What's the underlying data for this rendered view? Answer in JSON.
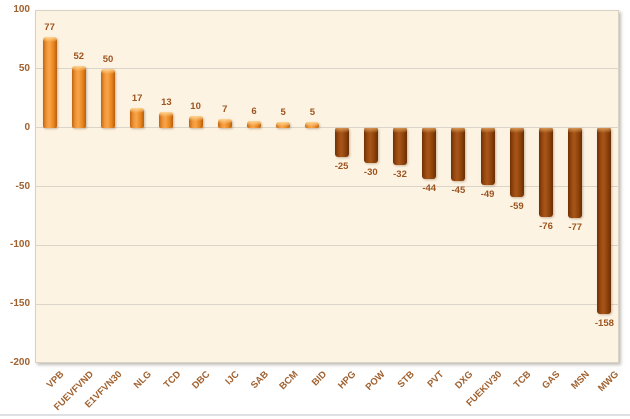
{
  "chart_data": {
    "type": "bar",
    "title": "",
    "categories": [
      "VPB",
      "FUEVFVND",
      "E1VFVN30",
      "NLG",
      "TCD",
      "DBC",
      "IJC",
      "SAB",
      "BCM",
      "BID",
      "HPG",
      "POW",
      "STB",
      "PVT",
      "DXG",
      "FUEKIV30",
      "TCB",
      "GAS",
      "MSN",
      "MWG"
    ],
    "values": [
      77,
      52,
      50,
      17,
      13,
      10,
      7,
      6,
      5,
      5,
      -25,
      -30,
      -32,
      -44,
      -45,
      -49,
      -59,
      -76,
      -77,
      -158
    ],
    "xlabel": "",
    "ylabel": "",
    "ylim": [
      -200,
      100
    ],
    "yticks": [
      100,
      50,
      0,
      -50,
      -100,
      -150,
      -200
    ],
    "grid": true,
    "legend": false,
    "data_labels": true,
    "colors": {
      "positive_gradient": [
        "#C16410",
        "#EE9538",
        "#F9A54A",
        "#E8861F",
        "#B95E0C"
      ],
      "negative_gradient": [
        "#6E3005",
        "#994910",
        "#A85618",
        "#8C420B",
        "#692D04"
      ],
      "positive_cap": "rgba(255,216,150,0.95)",
      "negative_cap": "rgba(226,162,92,0.85)",
      "value_label_text": "#9C5420",
      "axis_label_text": "#A0612F",
      "plot_background": "#FDF3E2",
      "gridline": "#DAD4C9",
      "plot_border": "#D8D1C4",
      "outer_background": "#FFFFFF"
    }
  }
}
